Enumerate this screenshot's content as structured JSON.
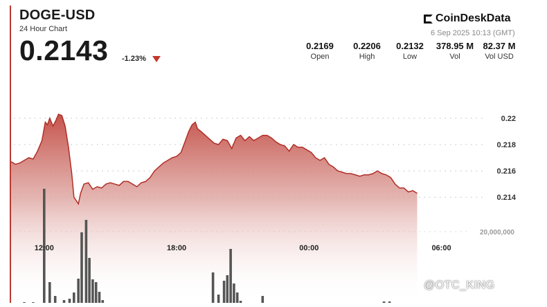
{
  "header": {
    "pair": "DOGE-USD",
    "subtitle": "24 Hour Chart",
    "price": "0.2143",
    "change": "-1.23%",
    "brand": "CoinDeskData",
    "timestamp": "6 Sep 2025 10:13 (GMT)",
    "stats": [
      {
        "value": "0.2169",
        "label": "Open"
      },
      {
        "value": "0.2206",
        "label": "High"
      },
      {
        "value": "0.2132",
        "label": "Low"
      },
      {
        "value": "378.95 M",
        "label": "Vol"
      },
      {
        "value": "82.37 M",
        "label": "Vol USD"
      }
    ],
    "watermark": "@OTC_KING"
  },
  "colors": {
    "accent": "#b93a32",
    "down": "#c0392b",
    "volume": "#555555"
  },
  "chart_data": {
    "type": "area",
    "x_ticks": [
      {
        "t": 1.5,
        "label": "12:00"
      },
      {
        "t": 7.5,
        "label": "18:00"
      },
      {
        "t": 13.5,
        "label": "00:00"
      },
      {
        "t": 19.5,
        "label": "06:00"
      }
    ],
    "y_ticks": [
      {
        "v": 0.22,
        "label": "0.22"
      },
      {
        "v": 0.218,
        "label": "0.218"
      },
      {
        "v": 0.216,
        "label": "0.216"
      },
      {
        "v": 0.214,
        "label": "0.214"
      }
    ],
    "ylim": [
      0.2127,
      0.2232
    ],
    "xlim": [
      0,
      23.5
    ],
    "volume_label": "20,000,000",
    "price": [
      [
        0.0,
        0.2167
      ],
      [
        0.2,
        0.2165
      ],
      [
        0.4,
        0.2166
      ],
      [
        0.6,
        0.2168
      ],
      [
        0.8,
        0.217
      ],
      [
        1.0,
        0.2169
      ],
      [
        1.2,
        0.2175
      ],
      [
        1.4,
        0.2183
      ],
      [
        1.55,
        0.2197
      ],
      [
        1.65,
        0.2195
      ],
      [
        1.75,
        0.22
      ],
      [
        1.9,
        0.2194
      ],
      [
        2.05,
        0.2199
      ],
      [
        2.15,
        0.2203
      ],
      [
        2.3,
        0.2202
      ],
      [
        2.45,
        0.2194
      ],
      [
        2.6,
        0.2178
      ],
      [
        2.75,
        0.2158
      ],
      [
        2.85,
        0.214
      ],
      [
        3.05,
        0.2135
      ],
      [
        3.15,
        0.2143
      ],
      [
        3.3,
        0.215
      ],
      [
        3.5,
        0.2151
      ],
      [
        3.7,
        0.2146
      ],
      [
        3.9,
        0.2148
      ],
      [
        4.1,
        0.2147
      ],
      [
        4.3,
        0.215
      ],
      [
        4.5,
        0.2151
      ],
      [
        4.7,
        0.215
      ],
      [
        4.9,
        0.2149
      ],
      [
        5.1,
        0.2152
      ],
      [
        5.3,
        0.2152
      ],
      [
        5.5,
        0.215
      ],
      [
        5.7,
        0.2148
      ],
      [
        5.9,
        0.2151
      ],
      [
        6.1,
        0.2152
      ],
      [
        6.3,
        0.2155
      ],
      [
        6.5,
        0.216
      ],
      [
        6.7,
        0.2163
      ],
      [
        6.9,
        0.2166
      ],
      [
        7.1,
        0.2168
      ],
      [
        7.3,
        0.217
      ],
      [
        7.5,
        0.2171
      ],
      [
        7.7,
        0.2174
      ],
      [
        7.9,
        0.2183
      ],
      [
        8.05,
        0.219
      ],
      [
        8.2,
        0.2195
      ],
      [
        8.35,
        0.2197
      ],
      [
        8.45,
        0.2192
      ],
      [
        8.6,
        0.219
      ],
      [
        8.8,
        0.2187
      ],
      [
        9.0,
        0.2184
      ],
      [
        9.2,
        0.2181
      ],
      [
        9.4,
        0.218
      ],
      [
        9.6,
        0.2184
      ],
      [
        9.8,
        0.2183
      ],
      [
        10.0,
        0.2177
      ],
      [
        10.2,
        0.2185
      ],
      [
        10.4,
        0.2187
      ],
      [
        10.6,
        0.2183
      ],
      [
        10.8,
        0.2186
      ],
      [
        11.0,
        0.2183
      ],
      [
        11.2,
        0.2185
      ],
      [
        11.4,
        0.2187
      ],
      [
        11.6,
        0.2187
      ],
      [
        11.8,
        0.2185
      ],
      [
        12.0,
        0.2182
      ],
      [
        12.2,
        0.218
      ],
      [
        12.4,
        0.2179
      ],
      [
        12.6,
        0.2175
      ],
      [
        12.8,
        0.218
      ],
      [
        13.0,
        0.2178
      ],
      [
        13.2,
        0.2178
      ],
      [
        13.4,
        0.2176
      ],
      [
        13.6,
        0.2174
      ],
      [
        13.8,
        0.217
      ],
      [
        14.0,
        0.2168
      ],
      [
        14.2,
        0.217
      ],
      [
        14.4,
        0.2165
      ],
      [
        14.6,
        0.2163
      ],
      [
        14.8,
        0.216
      ],
      [
        15.0,
        0.2159
      ],
      [
        15.2,
        0.2158
      ],
      [
        15.4,
        0.2158
      ],
      [
        15.6,
        0.2157
      ],
      [
        15.8,
        0.2156
      ],
      [
        16.0,
        0.2157
      ],
      [
        16.2,
        0.2157
      ],
      [
        16.4,
        0.2158
      ],
      [
        16.6,
        0.216
      ],
      [
        16.8,
        0.2158
      ],
      [
        17.0,
        0.2157
      ],
      [
        17.2,
        0.2155
      ],
      [
        17.4,
        0.215
      ],
      [
        17.6,
        0.2147
      ],
      [
        17.8,
        0.2147
      ],
      [
        18.0,
        0.2144
      ],
      [
        18.2,
        0.2145
      ],
      [
        18.4,
        0.2143
      ]
    ],
    "volume": [
      [
        0.6,
        0.0
      ],
      [
        1.0,
        0.1
      ],
      [
        1.5,
        16.5
      ],
      [
        1.75,
        3.0
      ],
      [
        2.0,
        1.0
      ],
      [
        2.4,
        0.4
      ],
      [
        2.65,
        0.6
      ],
      [
        2.85,
        1.5
      ],
      [
        3.05,
        3.5
      ],
      [
        3.2,
        10.2
      ],
      [
        3.4,
        12.0
      ],
      [
        3.55,
        6.5
      ],
      [
        3.7,
        3.4
      ],
      [
        3.85,
        3.0
      ],
      [
        4.0,
        1.6
      ],
      [
        4.15,
        0.4
      ],
      [
        9.15,
        4.4
      ],
      [
        9.4,
        1.2
      ],
      [
        9.65,
        3.2
      ],
      [
        9.8,
        4.0
      ],
      [
        9.95,
        7.8
      ],
      [
        10.1,
        2.8
      ],
      [
        10.25,
        1.5
      ],
      [
        10.4,
        0.3
      ],
      [
        11.4,
        1.0
      ],
      [
        16.9,
        0.2
      ],
      [
        17.15,
        0.2
      ]
    ]
  }
}
